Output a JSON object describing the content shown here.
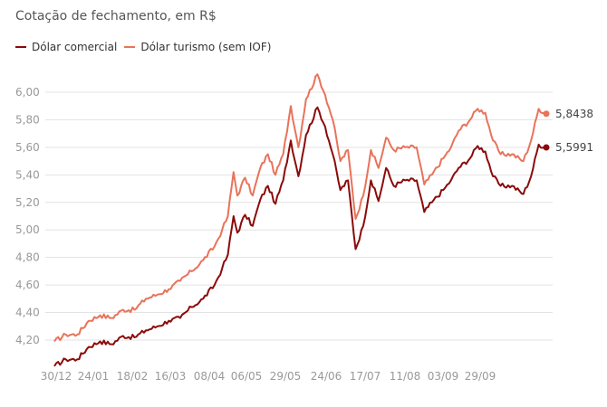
{
  "chart_data": {
    "type": "line",
    "title": "",
    "subtitle": "Cotação de fechamento, em R$",
    "xlabel": "",
    "ylabel": "",
    "ylim": [
      4.0,
      6.1
    ],
    "grid": true,
    "legend_position": "top-left",
    "y_ticks": [
      "6,00",
      "5,80",
      "5,60",
      "5,40",
      "5,20",
      "5,00",
      "4,80",
      "4,60",
      "4,40",
      "4,20"
    ],
    "y_tick_values": [
      6.0,
      5.8,
      5.6,
      5.4,
      5.2,
      5.0,
      4.8,
      4.6,
      4.4,
      4.2
    ],
    "x_ticks": [
      "30/12",
      "24/01",
      "18/02",
      "16/03",
      "08/04",
      "06/05",
      "29/05",
      "24/06",
      "17/07",
      "11/08",
      "03/09",
      "29/09"
    ],
    "x_tick_index": [
      0,
      17,
      35,
      53,
      71,
      88,
      106,
      124,
      142,
      160,
      178,
      195
    ],
    "n_points": 224,
    "series": [
      {
        "name": "Dólar comercial",
        "color": "#8b0a0a",
        "keypoints": [
          [
            0,
            4.01
          ],
          [
            6,
            4.06
          ],
          [
            12,
            4.06
          ],
          [
            18,
            4.15
          ],
          [
            24,
            4.19
          ],
          [
            30,
            4.17
          ],
          [
            36,
            4.23
          ],
          [
            42,
            4.22
          ],
          [
            48,
            4.27
          ],
          [
            54,
            4.3
          ],
          [
            60,
            4.34
          ],
          [
            66,
            4.36
          ],
          [
            72,
            4.44
          ],
          [
            78,
            4.5
          ],
          [
            84,
            4.6
          ],
          [
            88,
            4.72
          ],
          [
            91,
            4.82
          ],
          [
            94,
            5.1
          ],
          [
            96,
            4.98
          ],
          [
            100,
            5.11
          ],
          [
            104,
            5.03
          ],
          [
            108,
            5.22
          ],
          [
            112,
            5.32
          ],
          [
            116,
            5.19
          ],
          [
            120,
            5.36
          ],
          [
            124,
            5.65
          ],
          [
            128,
            5.39
          ],
          [
            132,
            5.69
          ],
          [
            138,
            5.89
          ],
          [
            142,
            5.75
          ],
          [
            146,
            5.55
          ],
          [
            150,
            5.29
          ],
          [
            154,
            5.36
          ],
          [
            158,
            4.86
          ],
          [
            162,
            5.03
          ],
          [
            166,
            5.36
          ],
          [
            170,
            5.21
          ],
          [
            174,
            5.45
          ],
          [
            178,
            5.32
          ],
          [
            184,
            5.36
          ],
          [
            190,
            5.36
          ],
          [
            194,
            5.13
          ],
          [
            198,
            5.2
          ],
          [
            204,
            5.29
          ],
          [
            208,
            5.36
          ],
          [
            212,
            5.45
          ],
          [
            218,
            5.52
          ],
          [
            222,
            5.61
          ],
          [
            226,
            5.57
          ],
          [
            230,
            5.39
          ],
          [
            234,
            5.32
          ],
          [
            240,
            5.32
          ],
          [
            246,
            5.26
          ],
          [
            250,
            5.39
          ],
          [
            254,
            5.62
          ],
          [
            258,
            5.5991
          ]
        ],
        "last_value": 5.5991,
        "last_label": "5,5991"
      },
      {
        "name": "Dólar turismo (sem IOF)",
        "color": "#e8735a",
        "keypoints": [
          [
            0,
            4.19
          ],
          [
            6,
            4.24
          ],
          [
            12,
            4.24
          ],
          [
            18,
            4.34
          ],
          [
            24,
            4.38
          ],
          [
            30,
            4.36
          ],
          [
            36,
            4.42
          ],
          [
            42,
            4.42
          ],
          [
            48,
            4.5
          ],
          [
            54,
            4.53
          ],
          [
            60,
            4.57
          ],
          [
            66,
            4.63
          ],
          [
            72,
            4.7
          ],
          [
            78,
            4.78
          ],
          [
            84,
            4.88
          ],
          [
            88,
            5.0
          ],
          [
            91,
            5.1
          ],
          [
            94,
            5.42
          ],
          [
            96,
            5.25
          ],
          [
            100,
            5.38
          ],
          [
            104,
            5.25
          ],
          [
            108,
            5.45
          ],
          [
            112,
            5.55
          ],
          [
            116,
            5.4
          ],
          [
            120,
            5.55
          ],
          [
            124,
            5.9
          ],
          [
            128,
            5.6
          ],
          [
            132,
            5.95
          ],
          [
            138,
            6.13
          ],
          [
            142,
            5.98
          ],
          [
            146,
            5.8
          ],
          [
            150,
            5.5
          ],
          [
            154,
            5.58
          ],
          [
            158,
            5.08
          ],
          [
            162,
            5.25
          ],
          [
            166,
            5.58
          ],
          [
            170,
            5.45
          ],
          [
            174,
            5.67
          ],
          [
            178,
            5.58
          ],
          [
            184,
            5.6
          ],
          [
            190,
            5.6
          ],
          [
            194,
            5.33
          ],
          [
            198,
            5.4
          ],
          [
            204,
            5.52
          ],
          [
            208,
            5.6
          ],
          [
            212,
            5.72
          ],
          [
            218,
            5.8
          ],
          [
            222,
            5.88
          ],
          [
            226,
            5.85
          ],
          [
            230,
            5.65
          ],
          [
            234,
            5.55
          ],
          [
            240,
            5.55
          ],
          [
            246,
            5.5
          ],
          [
            250,
            5.65
          ],
          [
            254,
            5.88
          ],
          [
            258,
            5.8438
          ]
        ],
        "last_value": 5.8438,
        "last_label": "5,8438"
      }
    ]
  }
}
